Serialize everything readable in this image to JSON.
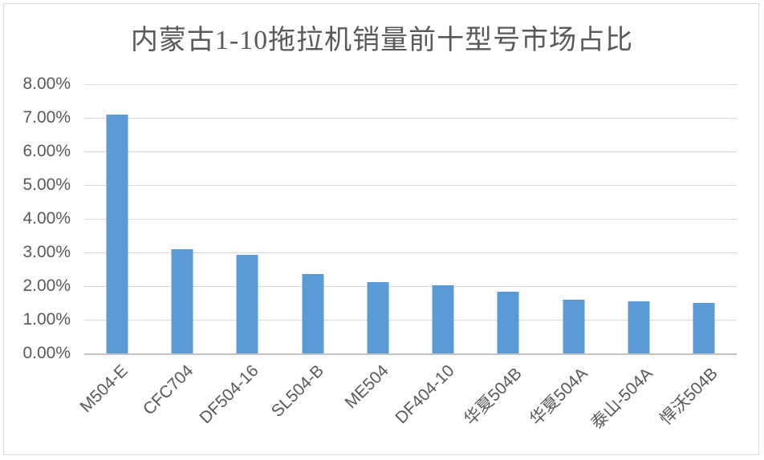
{
  "chart_data": {
    "type": "bar",
    "title": "内蒙古1-10拖拉机销量前十型号市场占比",
    "categories": [
      "M504-E",
      "CFC704",
      "DF504-16",
      "SL504-B",
      "ME504",
      "DF404-10",
      "华夏504B",
      "华夏504A",
      "泰山-504A",
      "悍沃504B"
    ],
    "values": [
      7.1,
      3.1,
      2.92,
      2.35,
      2.12,
      2.02,
      1.83,
      1.6,
      1.55,
      1.5
    ],
    "value_unit": "%",
    "xlabel": "",
    "ylabel": "",
    "ylim": [
      0,
      8
    ],
    "y_tick_step": 1,
    "y_tick_labels": [
      "0.00%",
      "1.00%",
      "2.00%",
      "3.00%",
      "4.00%",
      "5.00%",
      "6.00%",
      "7.00%",
      "8.00%"
    ],
    "grid": true,
    "legend_position": "none",
    "x_label_rotation_deg": 45,
    "bar_color": "#5b9bd5",
    "gridline_color": "#d9d9d9",
    "axis_line_color": "#c3c3c3",
    "text_color": "#595959",
    "title_color": "#595959",
    "background": "#ffffff",
    "border_color": "#d9d9d9"
  }
}
